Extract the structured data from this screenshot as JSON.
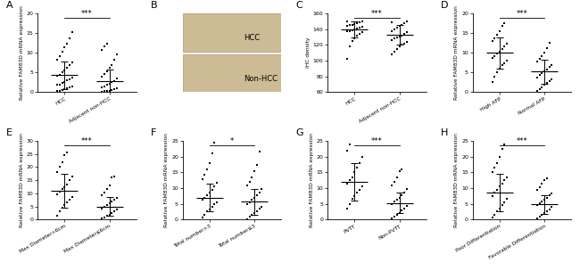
{
  "chart_data": [
    {
      "type": "strip",
      "panel_label": "A",
      "ylabel": "Relative FAM83D mRNA expression",
      "categories": [
        "HCC",
        "Adjacent non-HCC"
      ],
      "values": [
        [
          0.2,
          0.4,
          0.5,
          0.8,
          1.0,
          1.2,
          1.5,
          1.8,
          2.0,
          2.3,
          2.6,
          3.0,
          3.3,
          3.7,
          4.1,
          4.5,
          5.0,
          5.6,
          6.2,
          6.8,
          7.5,
          8.3,
          9.1,
          10.2,
          11.5,
          12.4,
          13.8,
          15.2
        ],
        [
          0.1,
          0.2,
          0.3,
          0.4,
          0.6,
          0.8,
          1.0,
          1.2,
          1.5,
          1.8,
          2.1,
          2.5,
          2.9,
          3.4,
          4.0,
          4.6,
          5.3,
          6.1,
          7.0,
          8.2,
          9.5,
          10.8,
          11.6,
          12.3
        ]
      ],
      "mean": [
        4.3,
        2.8
      ],
      "sd": [
        3.6,
        2.9
      ],
      "annotation": "***",
      "ylim": [
        0,
        20
      ],
      "yticks": [
        0,
        5,
        10,
        15,
        20
      ],
      "color": "#000000",
      "marker": "s"
    },
    {
      "type": "image",
      "panel_label": "B",
      "labels": [
        "HCC",
        "Non-HCC"
      ]
    },
    {
      "type": "strip",
      "panel_label": "C",
      "ylabel": "IHC density",
      "categories": [
        "HCC",
        "Adjacent non-HCC"
      ],
      "values": [
        [
          102,
          118,
          125,
          128,
          132,
          134,
          136,
          137,
          138,
          139,
          140,
          141,
          142,
          143,
          144,
          145,
          146,
          147,
          148,
          149,
          150,
          150
        ],
        [
          108,
          112,
          115,
          118,
          120,
          122,
          124,
          126,
          128,
          130,
          131,
          132,
          134,
          136,
          138,
          140,
          142,
          144,
          146,
          148,
          150,
          149
        ]
      ],
      "mean": [
        140,
        133
      ],
      "sd": [
        10,
        12
      ],
      "annotation": "***",
      "ylim": [
        60,
        160
      ],
      "yticks": [
        60,
        80,
        100,
        120,
        140,
        160
      ],
      "color": "#000000",
      "marker": "s"
    },
    {
      "type": "strip",
      "panel_label": "D",
      "ylabel": "Relative FAM83D mRNA expression",
      "categories": [
        "High AFP",
        "Normal AFP"
      ],
      "values": [
        [
          2.5,
          4.0,
          5.1,
          6.0,
          6.8,
          7.4,
          8.0,
          8.6,
          9.2,
          9.8,
          10.4,
          11.0,
          11.6,
          12.3,
          13.0,
          13.8,
          14.6,
          15.5,
          16.8,
          17.6
        ],
        [
          0.3,
          0.8,
          1.3,
          1.8,
          2.3,
          2.8,
          3.3,
          3.8,
          4.3,
          4.8,
          5.3,
          5.8,
          6.4,
          7.0,
          7.7,
          8.4,
          9.2,
          10.1,
          11.2,
          12.5
        ]
      ],
      "mean": [
        10.0,
        5.2
      ],
      "sd": [
        4.0,
        3.0
      ],
      "annotation": "***",
      "ylim": [
        0,
        20
      ],
      "yticks": [
        0,
        5,
        10,
        15,
        20
      ],
      "color": "#000000",
      "marker": "s"
    },
    {
      "type": "strip",
      "panel_label": "E",
      "ylabel": "Relative FAM83D mRNA expression",
      "categories": [
        "Max Diameter>6cm",
        "Max Diameter≤6cm"
      ],
      "values": [
        [
          1.5,
          3.0,
          4.5,
          5.5,
          6.5,
          7.5,
          8.5,
          9.5,
          10.5,
          11.5,
          12.5,
          13.5,
          15.0,
          16.5,
          18.0,
          20.0,
          22.0,
          24.5,
          25.5
        ],
        [
          0.3,
          0.8,
          1.3,
          1.9,
          2.5,
          3.1,
          3.7,
          4.3,
          4.9,
          5.5,
          6.1,
          6.8,
          7.5,
          8.3,
          9.2,
          10.3,
          11.5,
          13.0,
          16.0,
          16.5
        ]
      ],
      "mean": [
        11.0,
        5.0
      ],
      "sd": [
        6.5,
        3.5
      ],
      "annotation": "***",
      "ylim": [
        0,
        30
      ],
      "yticks": [
        0,
        5,
        10,
        15,
        20,
        25,
        30
      ],
      "color": "#000000",
      "marker": "s"
    },
    {
      "type": "strip",
      "panel_label": "F",
      "ylabel": "Relative FAM83D mRNA expression",
      "categories": [
        "Total number>3",
        "Total number≤3"
      ],
      "values": [
        [
          0.5,
          1.5,
          2.5,
          3.3,
          4.0,
          4.8,
          5.5,
          6.2,
          7.0,
          7.8,
          8.6,
          9.5,
          10.5,
          11.6,
          12.8,
          14.2,
          16.0,
          18.0,
          21.0,
          24.5
        ],
        [
          0.2,
          0.8,
          1.4,
          2.0,
          2.7,
          3.4,
          4.1,
          4.8,
          5.5,
          6.2,
          7.0,
          7.8,
          8.7,
          9.7,
          10.8,
          12.0,
          13.5,
          15.5,
          17.5,
          21.5
        ]
      ],
      "mean": [
        7.0,
        5.6
      ],
      "sd": [
        4.5,
        4.0
      ],
      "annotation": "*",
      "ylim": [
        0,
        25
      ],
      "yticks": [
        0,
        5,
        10,
        15,
        20,
        25
      ],
      "color": "#000000",
      "marker": "s"
    },
    {
      "type": "strip",
      "panel_label": "G",
      "ylabel": "Relative FAM83D mRNA expression",
      "categories": [
        "PVTT",
        "Non-PVTT"
      ],
      "values": [
        [
          3.5,
          5.0,
          6.5,
          7.5,
          8.5,
          9.5,
          10.5,
          11.5,
          12.5,
          13.5,
          15.0,
          16.5,
          18.0,
          20.0,
          22.0,
          24.0
        ],
        [
          0.3,
          0.9,
          1.5,
          2.1,
          2.8,
          3.5,
          4.2,
          4.9,
          5.6,
          6.3,
          7.0,
          7.8,
          8.7,
          9.7,
          10.8,
          12.0,
          13.5,
          15.5,
          16.0
        ]
      ],
      "mean": [
        12.0,
        5.3
      ],
      "sd": [
        6.0,
        3.2
      ],
      "annotation": "***",
      "ylim": [
        0,
        25
      ],
      "yticks": [
        0,
        5,
        10,
        15,
        20,
        25
      ],
      "color": "#000000",
      "marker": "s"
    },
    {
      "type": "strip",
      "panel_label": "H",
      "ylabel": "Relative FAM83D mRNA expression",
      "categories": [
        "Poor Differentiation",
        "Favorable Differentiation"
      ],
      "values": [
        [
          0.5,
          1.5,
          2.5,
          3.5,
          4.5,
          5.5,
          6.5,
          7.5,
          8.5,
          9.5,
          10.5,
          11.5,
          12.5,
          13.5,
          15.0,
          16.5,
          18.0,
          20.0,
          22.5,
          24.0
        ],
        [
          0.3,
          0.9,
          1.5,
          2.1,
          2.7,
          3.3,
          3.9,
          4.5,
          5.1,
          5.7,
          6.3,
          6.9,
          7.6,
          8.4,
          9.3,
          10.3,
          11.4,
          12.5,
          13.0
        ]
      ],
      "mean": [
        8.5,
        4.8
      ],
      "sd": [
        6.0,
        3.0
      ],
      "annotation": "***",
      "ylim": [
        0,
        25
      ],
      "yticks": [
        0,
        5,
        10,
        15,
        20,
        25
      ],
      "color": "#000000",
      "marker": "s"
    }
  ]
}
